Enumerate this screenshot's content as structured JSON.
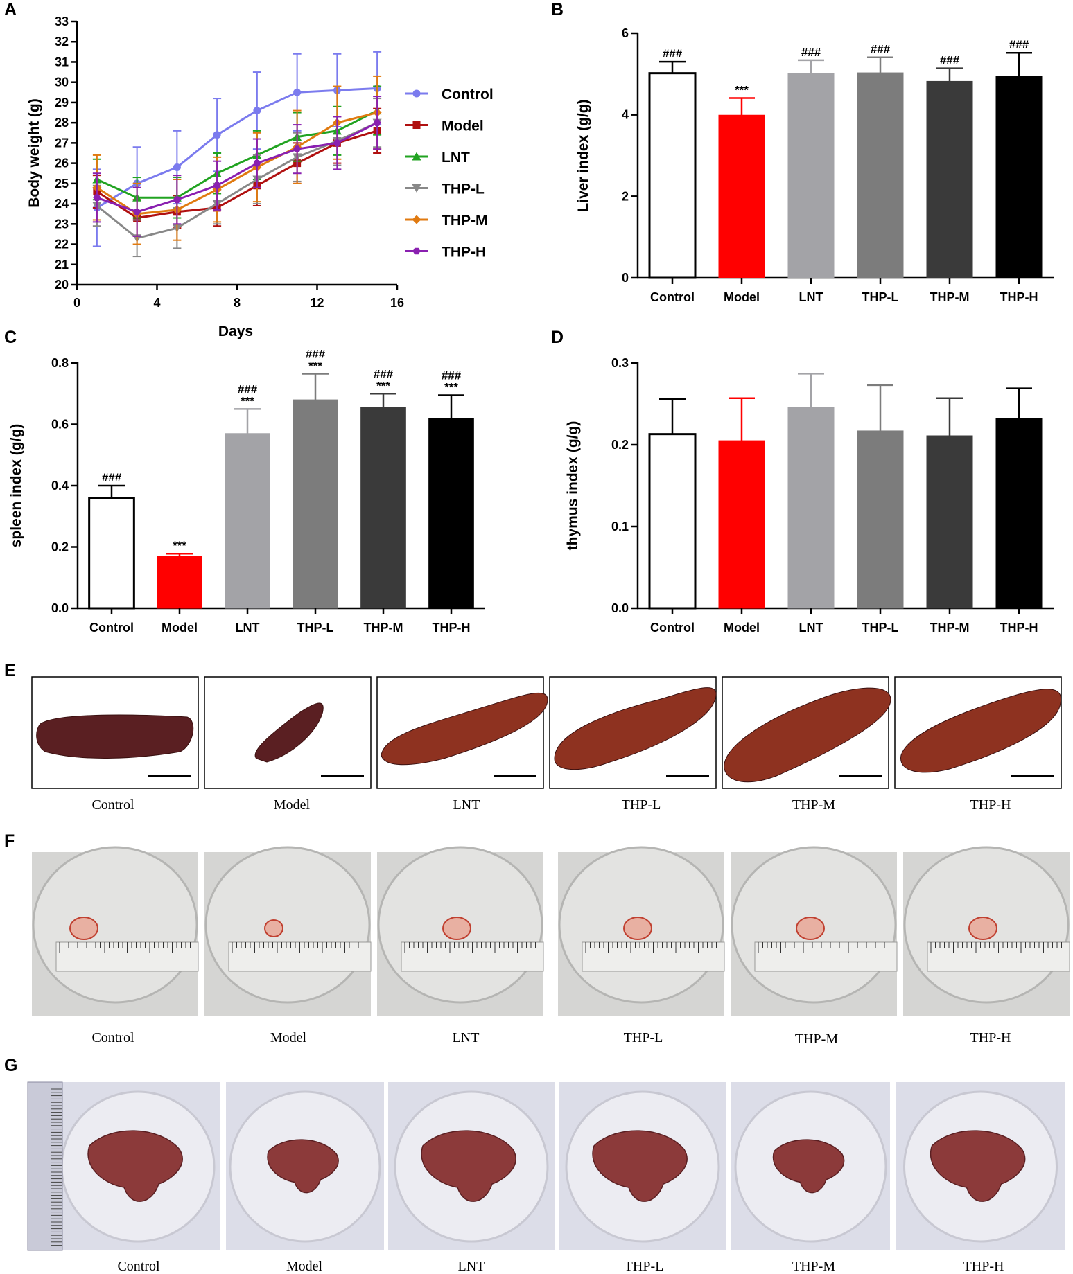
{
  "colors": {
    "Control": "#7b7bee",
    "Model": "#b01010",
    "LNT": "#21a321",
    "THP-L": "#888888",
    "THP-M": "#e07a10",
    "THP-H": "#8a20b0",
    "bar_fills": [
      "#ffffff",
      "#ff0000",
      "#a3a3a7",
      "#7c7c7c",
      "#3a3a3a",
      "#000000"
    ],
    "bar_errors": [
      "#000000",
      "#ff0000",
      "#a3a3a7",
      "#7c7c7c",
      "#3a3a3a",
      "#000000"
    ]
  },
  "chart_data": [
    {
      "panel": "A",
      "type": "line",
      "xlabel": "Days",
      "ylabel": "Body weight (g)",
      "xlim": [
        0,
        16
      ],
      "ylim": [
        20,
        33
      ],
      "xticks": [
        "0",
        "4",
        "8",
        "12",
        "16"
      ],
      "yticks": [
        "20",
        "21",
        "22",
        "23",
        "24",
        "25",
        "26",
        "27",
        "28",
        "29",
        "30",
        "31",
        "32",
        "33"
      ],
      "x": [
        1,
        3,
        5,
        7,
        9,
        11,
        13,
        15
      ],
      "series": [
        {
          "name": "Control",
          "marker": "circle",
          "values": [
            23.8,
            25.0,
            25.8,
            27.4,
            28.6,
            29.5,
            29.6,
            29.7
          ],
          "errors": [
            1.9,
            1.8,
            1.8,
            1.8,
            1.9,
            1.9,
            1.8,
            1.8
          ]
        },
        {
          "name": "Model",
          "marker": "square",
          "values": [
            24.6,
            23.3,
            23.6,
            23.8,
            24.9,
            26.0,
            27.0,
            27.6
          ],
          "errors": [
            0.8,
            0.9,
            0.8,
            0.9,
            1.0,
            1.0,
            1.0,
            1.1
          ]
        },
        {
          "name": "LNT",
          "marker": "triangle-up",
          "values": [
            25.2,
            24.3,
            24.3,
            25.5,
            26.4,
            27.3,
            27.6,
            28.6
          ],
          "errors": [
            1.0,
            1.0,
            1.0,
            1.0,
            1.2,
            1.2,
            1.2,
            1.2
          ]
        },
        {
          "name": "THP-L",
          "marker": "triangle-down",
          "values": [
            23.9,
            22.3,
            22.8,
            24.0,
            25.2,
            26.3,
            27.1,
            28.0
          ],
          "errors": [
            1.0,
            0.9,
            1.0,
            1.0,
            1.2,
            1.2,
            1.2,
            1.2
          ]
        },
        {
          "name": "THP-M",
          "marker": "diamond",
          "values": [
            24.8,
            23.5,
            23.7,
            24.7,
            25.8,
            26.8,
            28.0,
            28.5
          ],
          "errors": [
            1.6,
            1.5,
            1.5,
            1.6,
            1.7,
            1.8,
            1.8,
            1.8
          ]
        },
        {
          "name": "THP-H",
          "marker": "hexagon",
          "values": [
            24.3,
            23.6,
            24.2,
            24.9,
            26.0,
            26.7,
            27.0,
            28.0
          ],
          "errors": [
            1.2,
            1.2,
            1.2,
            1.2,
            1.2,
            1.2,
            1.3,
            1.3
          ]
        }
      ]
    },
    {
      "panel": "B",
      "type": "bar",
      "ylabel": "Liver index (g/g)",
      "ylim": [
        0,
        6
      ],
      "yticks": [
        "0",
        "2",
        "4",
        "6"
      ],
      "categories": [
        "Control",
        "Model",
        "LNT",
        "THP-L",
        "THP-M",
        "THP-H"
      ],
      "values": [
        5.02,
        3.99,
        5.01,
        5.03,
        4.82,
        4.94
      ],
      "errors": [
        0.28,
        0.42,
        0.33,
        0.38,
        0.32,
        0.58
      ],
      "annotations": [
        [
          "###"
        ],
        [
          "***"
        ],
        [
          "###"
        ],
        [
          "###"
        ],
        [
          "###"
        ],
        [
          "###"
        ]
      ]
    },
    {
      "panel": "C",
      "type": "bar",
      "ylabel": "spleen index (g/g)",
      "ylim": [
        0,
        0.8
      ],
      "yticks": [
        "0.0",
        "0.2",
        "0.4",
        "0.6",
        "0.8"
      ],
      "categories": [
        "Control",
        "Model",
        "LNT",
        "THP-L",
        "THP-M",
        "THP-H"
      ],
      "values": [
        0.36,
        0.17,
        0.57,
        0.68,
        0.655,
        0.62
      ],
      "errors": [
        0.04,
        0.008,
        0.08,
        0.085,
        0.045,
        0.075
      ],
      "annotations": [
        [
          "###"
        ],
        [
          "***"
        ],
        [
          "###",
          "***"
        ],
        [
          "###",
          "***"
        ],
        [
          "###",
          "***"
        ],
        [
          "###",
          "***"
        ]
      ]
    },
    {
      "panel": "D",
      "type": "bar",
      "ylabel": "thymus index (g/g)",
      "ylim": [
        0,
        0.3
      ],
      "yticks": [
        "0.0",
        "0.1",
        "0.2",
        "0.3"
      ],
      "categories": [
        "Control",
        "Model",
        "LNT",
        "THP-L",
        "THP-M",
        "THP-H"
      ],
      "values": [
        0.213,
        0.205,
        0.246,
        0.217,
        0.211,
        0.232
      ],
      "errors": [
        0.043,
        0.052,
        0.041,
        0.056,
        0.046,
        0.037
      ],
      "annotations": [
        [],
        [],
        [],
        [],
        [],
        []
      ]
    }
  ],
  "panel_labels": {
    "A": "A",
    "B": "B",
    "C": "C",
    "D": "D",
    "E": "E",
    "F": "F",
    "G": "G"
  },
  "photo_panels": {
    "E": {
      "captions": [
        "Control",
        "Model",
        "LNT",
        "THP-L",
        "THP-M",
        "THP-H"
      ]
    },
    "F": {
      "captions": [
        "Control",
        "Model",
        "LNT",
        "THP-L",
        "THP-M",
        "THP-H"
      ]
    },
    "G": {
      "captions": [
        "Control",
        "Model",
        "LNT",
        "THP-L",
        "THP-M",
        "THP-H"
      ]
    }
  }
}
